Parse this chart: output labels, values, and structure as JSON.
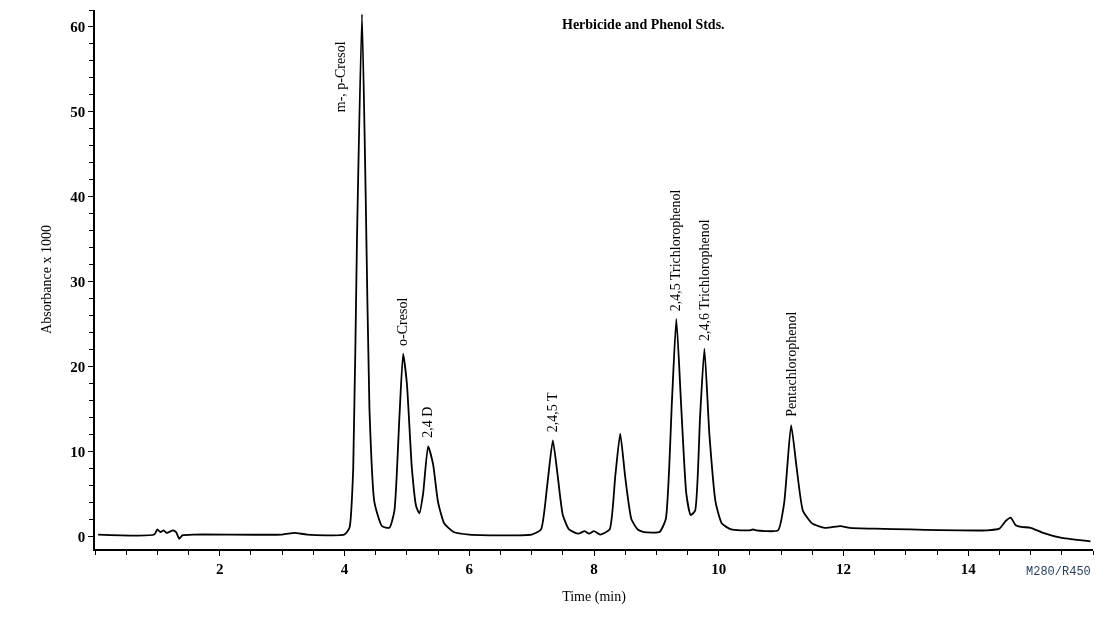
{
  "chart_data": {
    "type": "line",
    "title": "Herbicide and Phenol Stds.",
    "xlabel": "Time (min)",
    "ylabel": "Absorbance x 1000",
    "x": [
      0.05,
      0.95,
      1.0,
      1.05,
      1.1,
      1.15,
      1.25,
      1.3,
      1.35,
      1.4,
      1.6,
      3.0,
      3.2,
      3.4,
      4.0,
      4.08,
      4.14,
      4.2,
      4.28,
      4.34,
      4.4,
      4.48,
      4.6,
      4.72,
      4.8,
      4.88,
      4.94,
      5.0,
      5.08,
      5.15,
      5.2,
      5.26,
      5.34,
      5.42,
      5.5,
      5.6,
      5.75,
      6.0,
      7.0,
      7.15,
      7.25,
      7.34,
      7.42,
      7.5,
      7.6,
      7.75,
      7.85,
      7.92,
      8.0,
      8.1,
      8.25,
      8.34,
      8.42,
      8.5,
      8.6,
      8.7,
      8.8,
      9.05,
      9.15,
      9.25,
      9.32,
      9.4,
      9.48,
      9.55,
      9.62,
      9.7,
      9.77,
      9.85,
      9.95,
      10.05,
      10.2,
      10.5,
      10.55,
      10.6,
      10.95,
      11.05,
      11.16,
      11.25,
      11.35,
      11.5,
      11.7,
      11.95,
      12.1,
      12.5,
      14.3,
      14.5,
      14.6,
      14.68,
      14.76,
      14.85,
      15.0,
      15.2,
      15.5,
      15.96
    ],
    "series": [
      {
        "color": "#000000",
        "values": [
          0.2,
          0.2,
          0.8,
          0.5,
          0.7,
          0.4,
          0.7,
          0.5,
          -0.3,
          0.1,
          0.2,
          0.2,
          0.4,
          0.2,
          0.2,
          1.0,
          8,
          35,
          61.5,
          40,
          15,
          4,
          1.2,
          1.0,
          3,
          14,
          21.5,
          18,
          8,
          3.5,
          2.7,
          5,
          10.6,
          8.5,
          4,
          1.5,
          0.5,
          0.2,
          0.2,
          0.8,
          6,
          11.3,
          7,
          2.5,
          0.8,
          0.3,
          0.6,
          0.3,
          0.6,
          0.2,
          0.8,
          7,
          12.1,
          7,
          2,
          0.8,
          0.5,
          0.5,
          2,
          16,
          25.6,
          15,
          5,
          2.5,
          3,
          14,
          22.1,
          12,
          4,
          1.5,
          0.8,
          0.7,
          0.8,
          0.7,
          0.7,
          4,
          13.1,
          8,
          3,
          1.5,
          1.0,
          1.2,
          1.0,
          0.9,
          0.7,
          0.9,
          1.8,
          2.2,
          1.3,
          1.1,
          1.0,
          0.4,
          -0.2,
          -0.6
        ]
      }
    ],
    "xlim": [
      0,
      16
    ],
    "xticks": [
      2,
      4,
      6,
      8,
      10,
      12,
      14
    ],
    "ylim": [
      -1.5,
      62
    ],
    "yticks": [
      0,
      10,
      20,
      30,
      40,
      50,
      60
    ],
    "marker": "none",
    "line_style": "solid",
    "annotations": [
      {
        "text": "m-, p-Cresol",
        "x": 4.28,
        "y": 61.5
      },
      {
        "text": "o-Cresol",
        "x": 4.94,
        "y": 21.5
      },
      {
        "text": "2,4 D",
        "x": 5.34,
        "y": 10.6
      },
      {
        "text": "2,4,5 T",
        "x": 7.34,
        "y": 11.3
      },
      {
        "text": "2,4,5 Trichlorophenol",
        "x": 9.32,
        "y": 25.6
      },
      {
        "text": "2,4,6 Trichlorophenol",
        "x": 9.77,
        "y": 22.1
      },
      {
        "text": "Pentachlorophenol",
        "x": 11.16,
        "y": 13.1
      },
      "M280/R450"
    ]
  }
}
